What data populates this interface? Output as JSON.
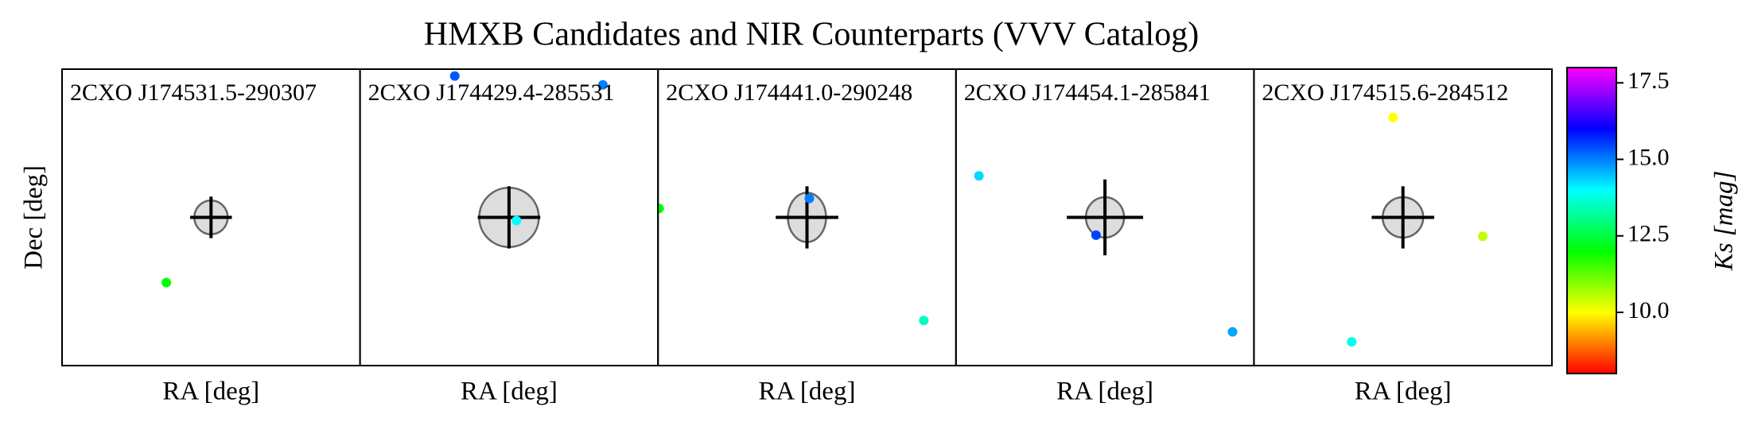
{
  "chart_data": {
    "type": "scatter",
    "title": "HMXB Candidates and NIR Counterparts (VVV Catalog)",
    "xlabel": "RA [deg]",
    "ylabel": "Dec [deg]",
    "xlim": [
      0,
      1
    ],
    "ylim": [
      0,
      1
    ],
    "colorbar": {
      "label": "Ks [mag]",
      "colormap": "gist_rainbow",
      "lim": [
        8,
        18
      ],
      "ticks": [
        {
          "value": 10,
          "label": "10.0"
        },
        12.5,
        {
          "value": 15,
          "label": "15.0"
        },
        17.5
      ]
    },
    "panels": [
      {
        "title": "2CXO J174531.5-290307",
        "source": {
          "x": 0.5,
          "y": 0.5,
          "ellipse": [
            0.056,
            0.057
          ],
          "cross": [
            0.07,
            0.07
          ]
        },
        "points": {
          "x": [
            0.35
          ],
          "y": [
            0.28
          ],
          "ks": [
            12.0
          ]
        }
      },
      {
        "title": "2CXO J174429.4-285531",
        "source": {
          "x": 0.5,
          "y": 0.5,
          "ellipse": [
            0.1,
            0.1
          ],
          "cross": [
            0.105,
            0.105
          ]
        },
        "points": {
          "x": [
            0.318,
            0.815,
            0.525
          ],
          "y": [
            0.977,
            0.947,
            0.489
          ],
          "ks": [
            15.3,
            15.0,
            14.0
          ]
        }
      },
      {
        "title": "2CXO J174441.0-290248",
        "source": {
          "x": 0.5,
          "y": 0.5,
          "ellipse": [
            0.064,
            0.083
          ],
          "cross": [
            0.105,
            0.105
          ]
        },
        "points": {
          "x": [
            0.004,
            0.508,
            0.892
          ],
          "y": [
            0.53,
            0.564,
            0.152
          ],
          "ks": [
            12.0,
            15.0,
            13.5
          ]
        }
      },
      {
        "title": "2CXO J174454.1-285841",
        "source": {
          "x": 0.5,
          "y": 0.5,
          "ellipse": [
            0.064,
            0.068
          ],
          "cross": [
            0.128,
            0.128
          ]
        },
        "points": {
          "x": [
            0.077,
            0.47,
            0.928
          ],
          "y": [
            0.64,
            0.44,
            0.114
          ],
          "ks": [
            14.3,
            15.5,
            14.7
          ]
        }
      },
      {
        "title": "2CXO J174515.6-284512",
        "source": {
          "x": 0.5,
          "y": 0.5,
          "ellipse": [
            0.068,
            0.068
          ],
          "cross": [
            0.105,
            0.105
          ]
        },
        "points": {
          "x": [
            0.467,
            0.768,
            0.328
          ],
          "y": [
            0.837,
            0.436,
            0.08
          ],
          "ks": [
            10.0,
            10.5,
            13.8
          ]
        }
      }
    ]
  }
}
